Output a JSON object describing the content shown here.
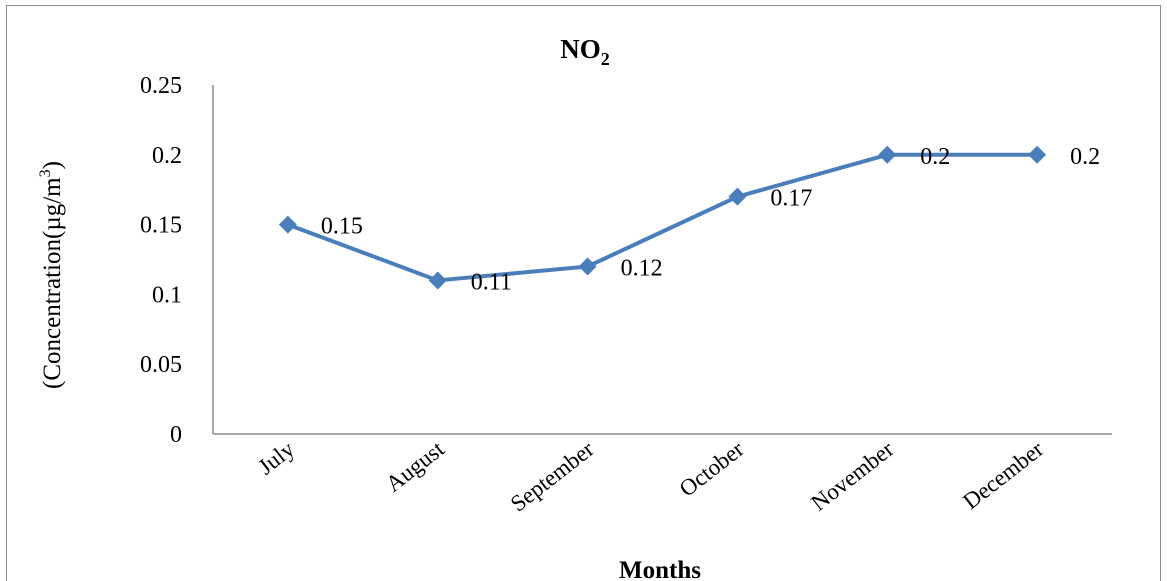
{
  "chart_data": {
    "type": "line",
    "title": "NO",
    "title_subscript": "2",
    "xlabel": "Months",
    "ylabel": "(Concentration(µg/m",
    "ylabel_superscript": "3",
    "ylabel_suffix": ")",
    "categories": [
      "July",
      "August",
      "September",
      "October",
      "November",
      "December"
    ],
    "series": [
      {
        "values": [
          0.15,
          0.11,
          0.12,
          0.17,
          0.2,
          0.2
        ],
        "data_labels": [
          "0.15",
          "0.11",
          "0.12",
          "0.17",
          "0.2",
          "0.2"
        ],
        "color": "#4a7ebb",
        "marker": "diamond"
      }
    ],
    "yticks": [
      0,
      0.05,
      0.1,
      0.15,
      0.2,
      0.25
    ],
    "ytick_labels": [
      "0",
      "0.05",
      "0.1",
      "0.15",
      "0.2",
      "0.25"
    ],
    "ylim": [
      0,
      0.25
    ],
    "grid": false,
    "legend": "none"
  }
}
